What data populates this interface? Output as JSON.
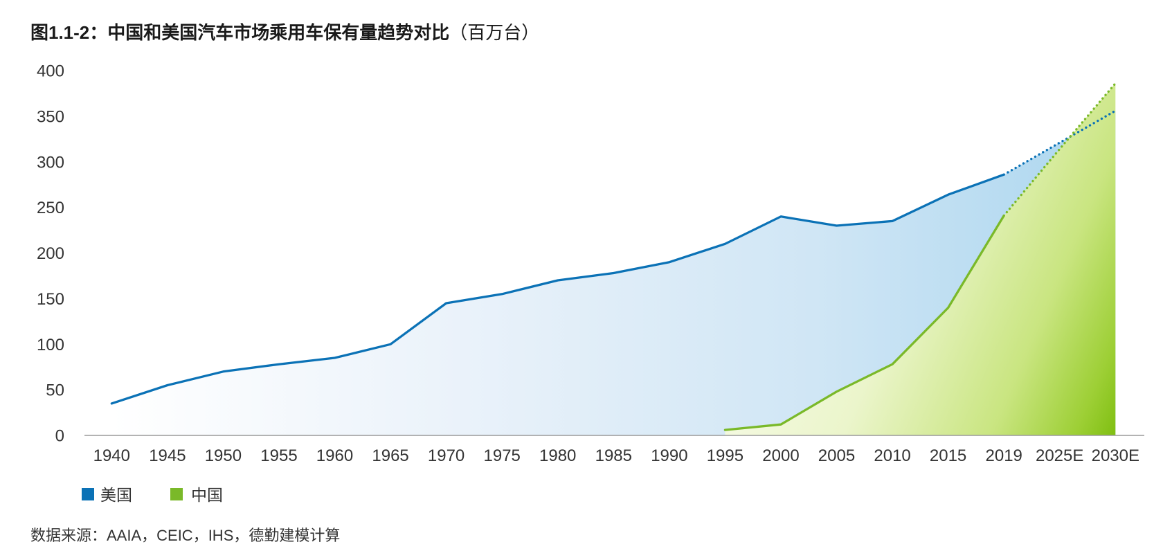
{
  "chart_data": {
    "type": "line",
    "title": "图1.1-2：中国和美国汽车市场乘用车保有量趋势对比",
    "title_unit": "（百万台）",
    "categories": [
      "1940",
      "1945",
      "1950",
      "1955",
      "1960",
      "1965",
      "1970",
      "1975",
      "1980",
      "1985",
      "1990",
      "1995",
      "2000",
      "2005",
      "2010",
      "2015",
      "2019",
      "2025E",
      "2030E"
    ],
    "series": [
      {
        "name": "美国",
        "color": "#0b72b6",
        "values": [
          35,
          55,
          70,
          78,
          85,
          100,
          145,
          155,
          170,
          178,
          190,
          210,
          240,
          230,
          235,
          264,
          286,
          321,
          356
        ]
      },
      {
        "name": "中国",
        "color": "#7ab929",
        "values": [
          null,
          null,
          null,
          null,
          null,
          null,
          null,
          null,
          null,
          null,
          null,
          6,
          12,
          48,
          78,
          140,
          241,
          314,
          386
        ]
      }
    ],
    "projection": {
      "from": "2019",
      "style": "dotted"
    },
    "ylim": [
      0,
      400
    ],
    "yticks": [
      0,
      50,
      100,
      150,
      200,
      250,
      300,
      350,
      400
    ],
    "xlabel": "",
    "ylabel": "",
    "grid": false,
    "legend": "bottom-left",
    "source": "数据来源：AAIA，CEIC，IHS，德勤建模计算"
  }
}
